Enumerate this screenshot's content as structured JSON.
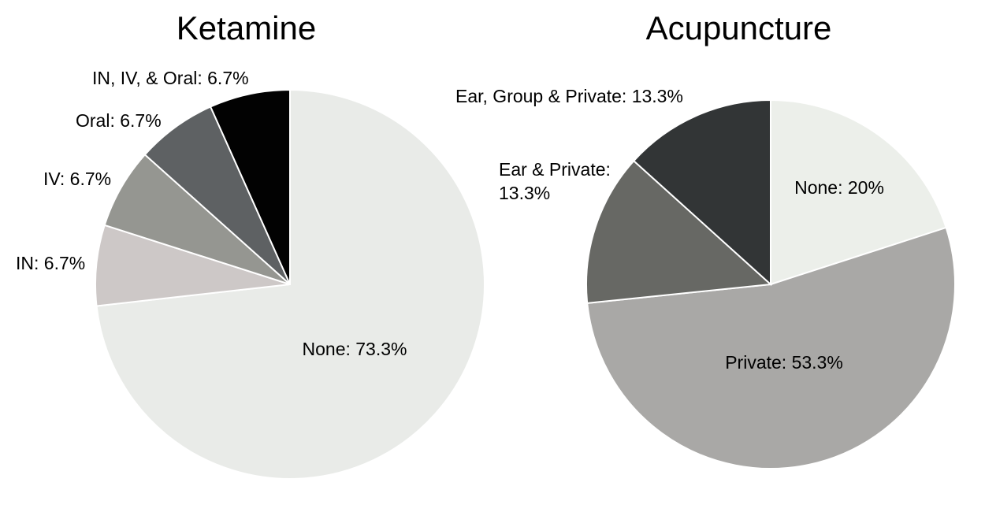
{
  "chart_data": [
    {
      "type": "pie",
      "title": "Ketamine",
      "slices": [
        {
          "label": "None: 73.3%",
          "value": 73.3,
          "color": "#e9ebe8"
        },
        {
          "label": "IN: 6.7%",
          "value": 6.7,
          "color": "#cdc8c7"
        },
        {
          "label": "IV: 6.7%",
          "value": 6.7,
          "color": "#959691"
        },
        {
          "label": "Oral: 6.7%",
          "value": 6.7,
          "color": "#5e6163"
        },
        {
          "label": "IN, IV, & Oral: 6.7%",
          "value": 6.7,
          "color": "#020202"
        }
      ]
    },
    {
      "type": "pie",
      "title": "Acupuncture",
      "slices": [
        {
          "label": "None: 20%",
          "value": 20,
          "color": "#ecefea"
        },
        {
          "label": "Private: 53.3%",
          "value": 53.3,
          "color": "#a9a8a6"
        },
        {
          "label": "Ear & Private: 13.3%",
          "value": 13.3,
          "color": "#676864"
        },
        {
          "label": "Ear, Group & Private: 13.3%",
          "value": 13.3,
          "color": "#323536"
        }
      ]
    }
  ]
}
